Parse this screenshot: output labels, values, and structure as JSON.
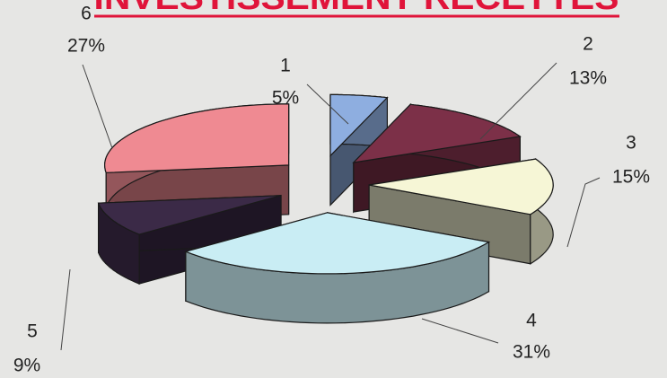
{
  "chart_data": {
    "type": "pie3d",
    "title": "INVESTISSEMENT RECETTES",
    "categories": [
      "1",
      "2",
      "3",
      "4",
      "5",
      "6"
    ],
    "values": [
      5,
      13,
      15,
      31,
      9,
      27
    ],
    "value_labels": [
      "5%",
      "13%",
      "15%",
      "31%",
      "9%",
      "27%"
    ],
    "colors": [
      "#8eaee0",
      "#7c3048",
      "#f6f6d6",
      "#c9edf4",
      "#3b2a47",
      "#ef8a92"
    ]
  }
}
